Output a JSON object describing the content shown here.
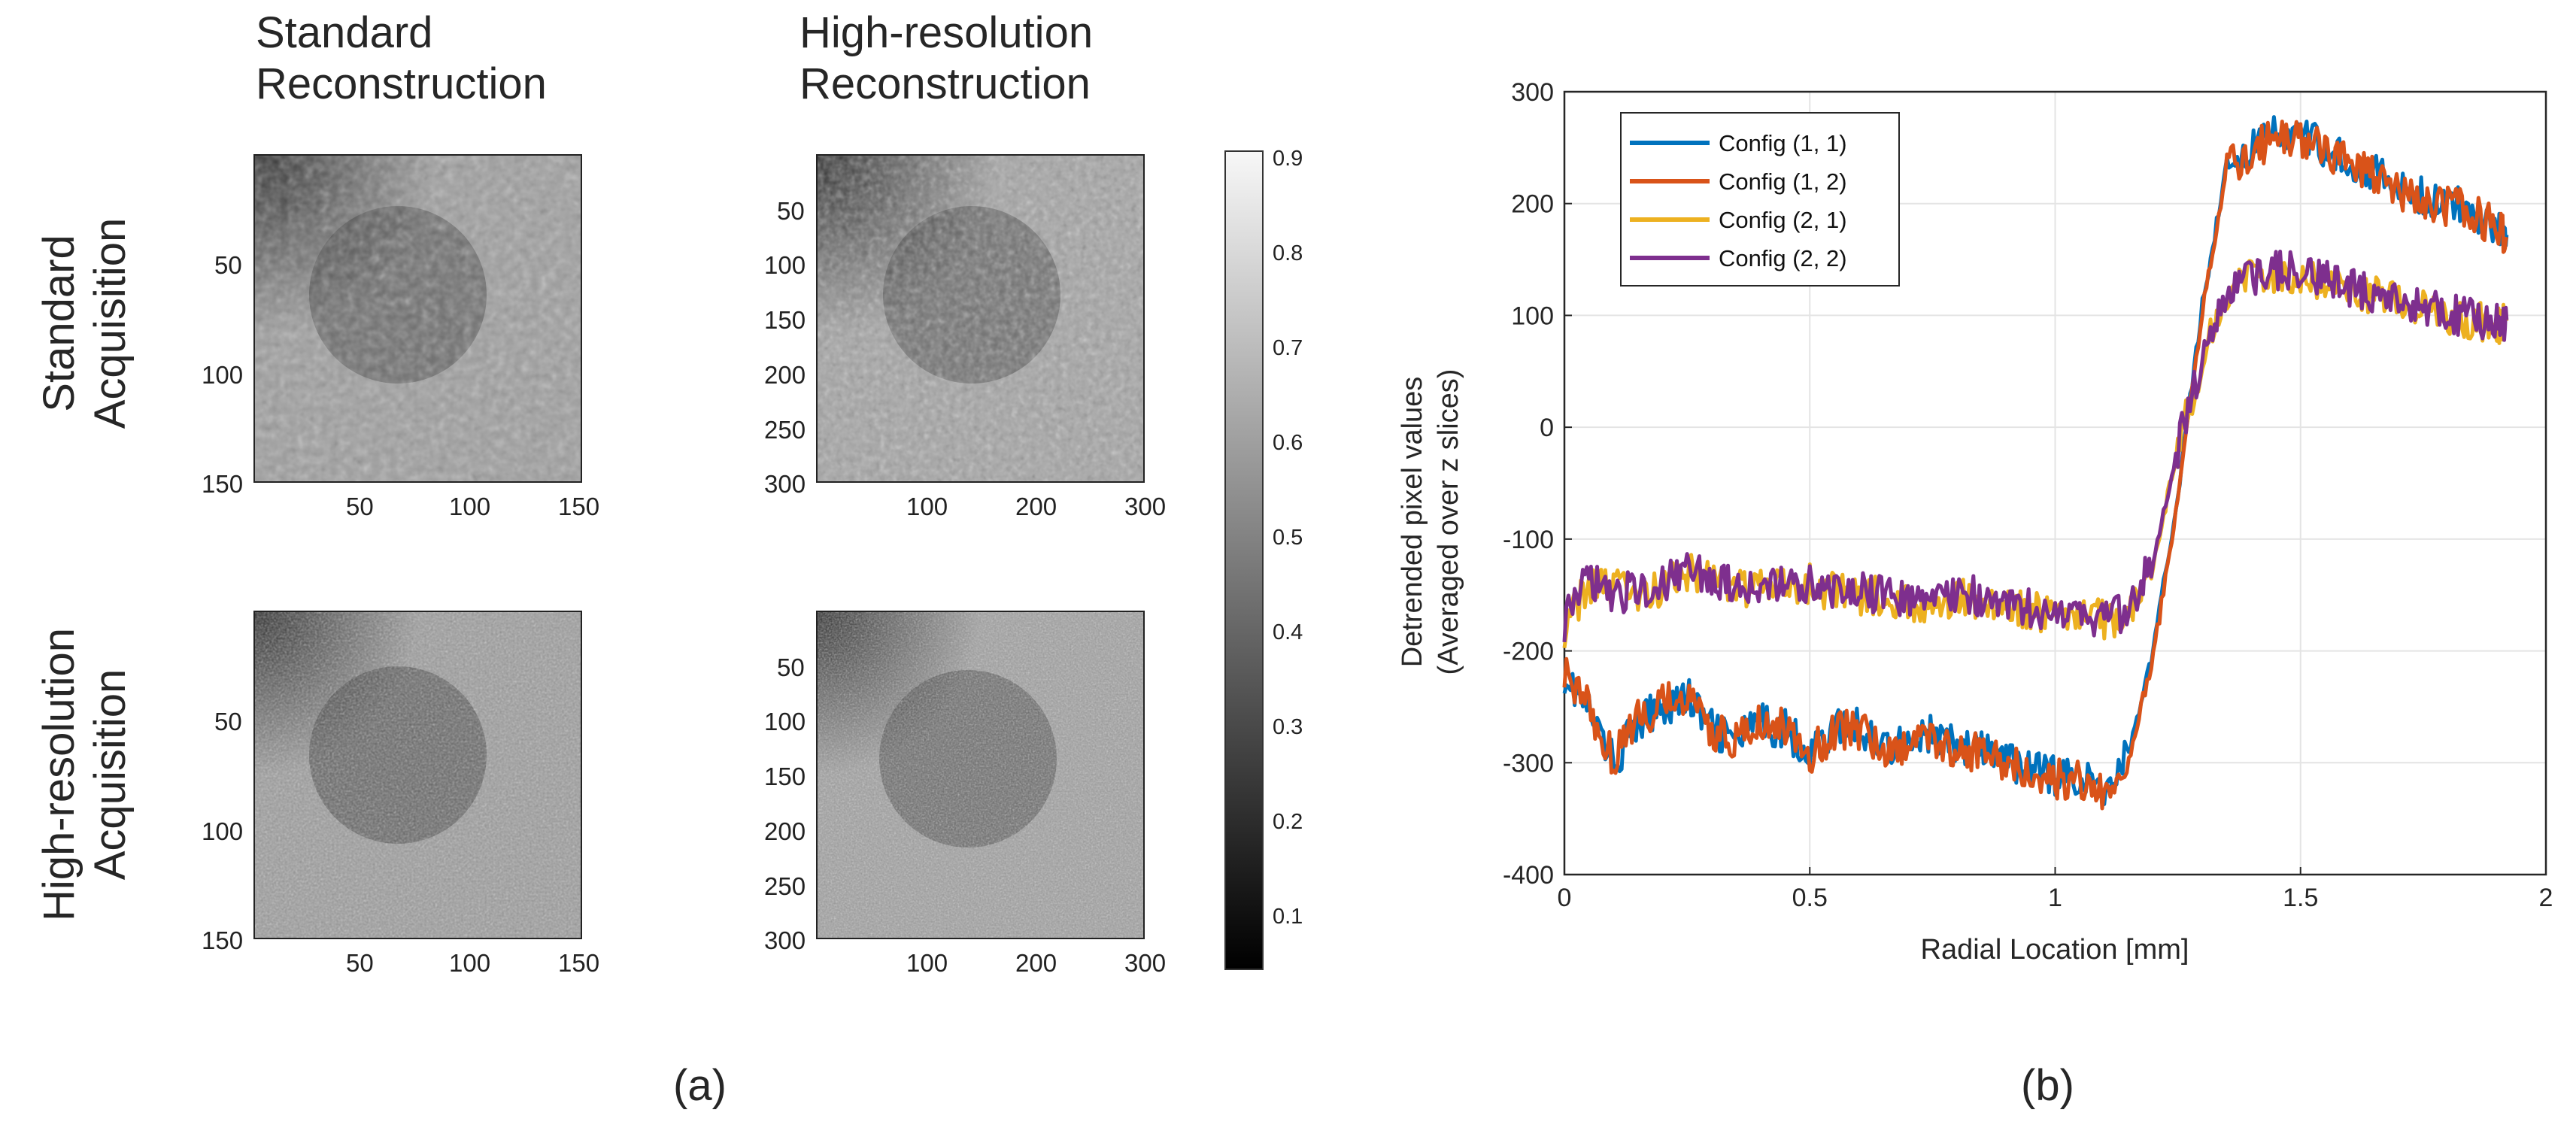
{
  "figure_a": {
    "caption": "(a)",
    "columns": [
      {
        "line1": "Standard",
        "line2": "Reconstruction"
      },
      {
        "line1": "High-resolution",
        "line2": "Reconstruction"
      }
    ],
    "rows": [
      {
        "line1": "Standard",
        "line2": "Acquisition"
      },
      {
        "line1": "High-resolution",
        "line2": "Acquisition"
      }
    ],
    "panels": [
      {
        "id": "std-acq-std-rec",
        "y_ticks": [
          "50",
          "100",
          "150"
        ],
        "x_ticks": [
          "50",
          "100",
          "150"
        ]
      },
      {
        "id": "std-acq-hr-rec",
        "y_ticks": [
          "50",
          "100",
          "150",
          "200",
          "250",
          "300"
        ],
        "x_ticks": [
          "100",
          "200",
          "300"
        ]
      },
      {
        "id": "hr-acq-std-rec",
        "y_ticks": [
          "50",
          "100",
          "150"
        ],
        "x_ticks": [
          "50",
          "100",
          "150"
        ]
      },
      {
        "id": "hr-acq-hr-rec",
        "y_ticks": [
          "50",
          "100",
          "150",
          "200",
          "250",
          "300"
        ],
        "x_ticks": [
          "100",
          "200",
          "300"
        ]
      }
    ],
    "colorbar": {
      "colormap": "gray",
      "range": [
        0.05,
        0.92
      ],
      "ticks": [
        "0.9",
        "0.8",
        "0.7",
        "0.6",
        "0.5",
        "0.4",
        "0.3",
        "0.2",
        "0.1"
      ]
    }
  },
  "chart_data": {
    "type": "line",
    "caption": "(b)",
    "title": "",
    "xlabel": "Radial Location [mm]",
    "ylabel_line1": "Detrended pixel values",
    "ylabel_line2": "(Averaged over z slices)",
    "xlim": [
      0,
      2
    ],
    "ylim": [
      -400,
      300
    ],
    "x_ticks": [
      "0",
      "0.5",
      "1",
      "1.5",
      "2"
    ],
    "y_ticks": [
      "300",
      "200",
      "100",
      "0",
      "-100",
      "-200",
      "-300",
      "-400"
    ],
    "grid": true,
    "legend_position": "top-left",
    "series": [
      {
        "name": "Config (1, 1)",
        "color": "#0072BD",
        "x": [
          0.0,
          0.05,
          0.1,
          0.15,
          0.2,
          0.25,
          0.3,
          0.35,
          0.4,
          0.45,
          0.5,
          0.55,
          0.6,
          0.65,
          0.7,
          0.75,
          0.8,
          0.85,
          0.9,
          0.95,
          1.0,
          1.05,
          1.1,
          1.15,
          1.2,
          1.25,
          1.3,
          1.35,
          1.4,
          1.45,
          1.5,
          1.55,
          1.6,
          1.65,
          1.7,
          1.75,
          1.8,
          1.85,
          1.9,
          1.92
        ],
        "y": [
          -220,
          -255,
          -300,
          -265,
          -250,
          -240,
          -270,
          -280,
          -265,
          -270,
          -290,
          -270,
          -268,
          -285,
          -280,
          -275,
          -285,
          -290,
          -298,
          -305,
          -312,
          -312,
          -325,
          -290,
          -200,
          -60,
          110,
          235,
          250,
          262,
          260,
          250,
          238,
          228,
          212,
          205,
          200,
          195,
          180,
          172
        ]
      },
      {
        "name": "Config (1, 2)",
        "color": "#D95319",
        "x": [
          0.0,
          0.05,
          0.1,
          0.15,
          0.2,
          0.25,
          0.3,
          0.35,
          0.4,
          0.45,
          0.5,
          0.55,
          0.6,
          0.65,
          0.7,
          0.75,
          0.8,
          0.85,
          0.9,
          0.95,
          1.0,
          1.05,
          1.1,
          1.15,
          1.2,
          1.25,
          1.3,
          1.35,
          1.4,
          1.45,
          1.5,
          1.55,
          1.6,
          1.65,
          1.7,
          1.75,
          1.8,
          1.85,
          1.9,
          1.92
        ],
        "y": [
          -215,
          -250,
          -295,
          -262,
          -248,
          -242,
          -272,
          -282,
          -265,
          -270,
          -292,
          -272,
          -270,
          -287,
          -282,
          -277,
          -287,
          -292,
          -300,
          -307,
          -315,
          -315,
          -328,
          -295,
          -205,
          -65,
          105,
          230,
          248,
          258,
          256,
          248,
          236,
          226,
          210,
          203,
          198,
          192,
          178,
          170
        ]
      },
      {
        "name": "Config (2, 1)",
        "color": "#EDB120",
        "x": [
          0.0,
          0.05,
          0.1,
          0.15,
          0.2,
          0.25,
          0.3,
          0.35,
          0.4,
          0.45,
          0.5,
          0.55,
          0.6,
          0.65,
          0.7,
          0.75,
          0.8,
          0.85,
          0.9,
          0.95,
          1.0,
          1.05,
          1.1,
          1.15,
          1.2,
          1.25,
          1.3,
          1.35,
          1.4,
          1.45,
          1.5,
          1.55,
          1.6,
          1.65,
          1.7,
          1.75,
          1.8,
          1.85,
          1.9,
          1.92
        ],
        "y": [
          -180,
          -140,
          -145,
          -148,
          -142,
          -130,
          -138,
          -145,
          -140,
          -143,
          -140,
          -148,
          -150,
          -152,
          -155,
          -158,
          -150,
          -155,
          -162,
          -165,
          -168,
          -170,
          -172,
          -168,
          -120,
          -20,
          60,
          120,
          132,
          138,
          136,
          130,
          124,
          118,
          110,
          104,
          100,
          96,
          92,
          95
        ]
      },
      {
        "name": "Config (2, 2)",
        "color": "#7E2F8E",
        "x": [
          0.0,
          0.05,
          0.1,
          0.15,
          0.2,
          0.25,
          0.3,
          0.35,
          0.4,
          0.45,
          0.5,
          0.55,
          0.6,
          0.65,
          0.7,
          0.75,
          0.8,
          0.85,
          0.9,
          0.95,
          1.0,
          1.05,
          1.1,
          1.15,
          1.2,
          1.25,
          1.3,
          1.35,
          1.4,
          1.45,
          1.5,
          1.55,
          1.6,
          1.65,
          1.7,
          1.75,
          1.8,
          1.85,
          1.9,
          1.92
        ],
        "y": [
          -175,
          -135,
          -150,
          -145,
          -138,
          -128,
          -135,
          -142,
          -138,
          -140,
          -138,
          -145,
          -148,
          -150,
          -152,
          -155,
          -148,
          -152,
          -160,
          -162,
          -165,
          -168,
          -170,
          -165,
          -118,
          -18,
          62,
          122,
          134,
          140,
          138,
          132,
          126,
          120,
          112,
          106,
          102,
          98,
          94,
          96
        ]
      }
    ]
  }
}
